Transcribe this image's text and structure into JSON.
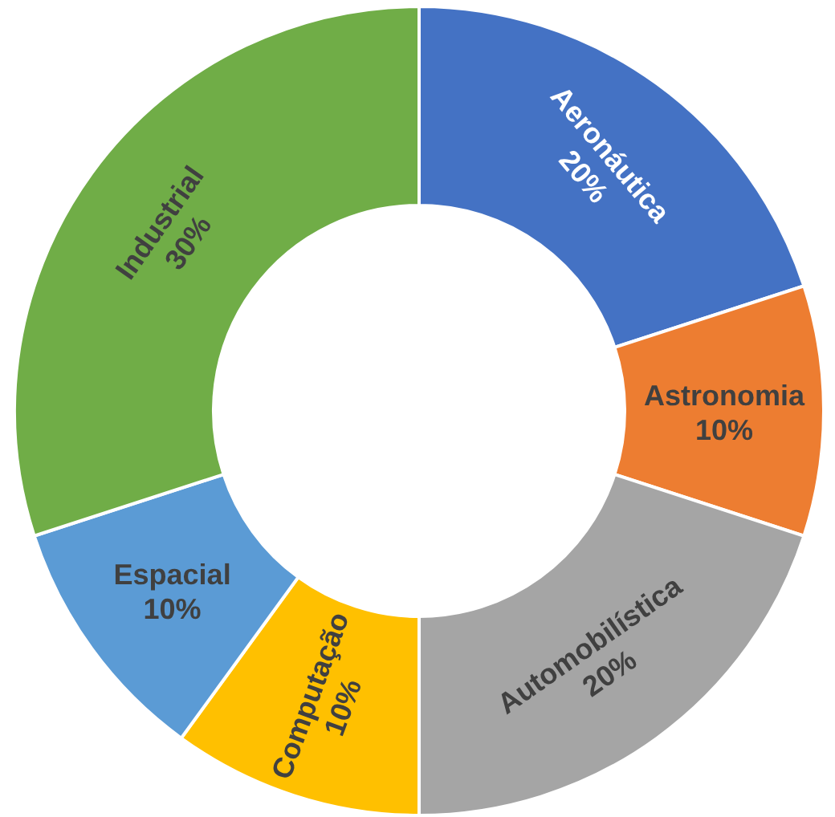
{
  "chart_data": {
    "type": "donut",
    "categories": [
      "Aeronáutica",
      "Astronomia",
      "Automobilística",
      "Computação",
      "Espacial",
      "Industrial"
    ],
    "values": [
      20,
      10,
      20,
      10,
      10,
      30
    ],
    "value_labels": [
      "20%",
      "10%",
      "20%",
      "10%",
      "10%",
      "30%"
    ],
    "colors": [
      "#4472c4",
      "#ed7d31",
      "#a5a5a5",
      "#ffc000",
      "#5b9bd5",
      "#70ad47"
    ]
  }
}
